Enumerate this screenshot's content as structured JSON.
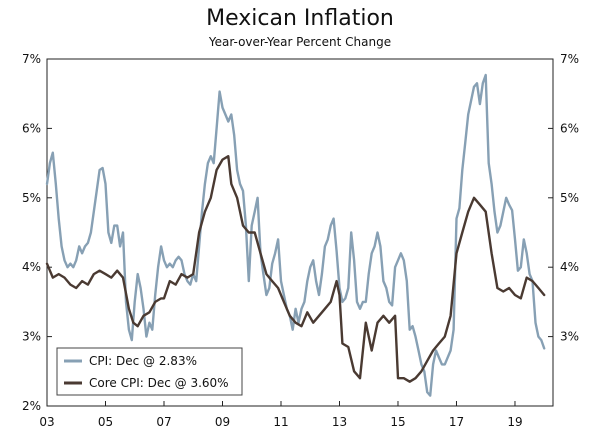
{
  "chart_data": {
    "type": "line",
    "title": "Mexican Inflation",
    "subtitle": "Year-over-Year Percent Change",
    "xlabel": "",
    "ylabel": "",
    "xlim": [
      2003,
      2020.3
    ],
    "ylim": [
      2,
      7
    ],
    "x_ticks": [
      {
        "value": 2003,
        "label": "03"
      },
      {
        "value": 2005,
        "label": "05"
      },
      {
        "value": 2007,
        "label": "07"
      },
      {
        "value": 2009,
        "label": "09"
      },
      {
        "value": 2011,
        "label": "11"
      },
      {
        "value": 2013,
        "label": "13"
      },
      {
        "value": 2015,
        "label": "15"
      },
      {
        "value": 2017,
        "label": "17"
      },
      {
        "value": 2019,
        "label": "19"
      }
    ],
    "y_ticks_left": [
      {
        "value": 2,
        "label": "2%"
      },
      {
        "value": 3,
        "label": "3%"
      },
      {
        "value": 4,
        "label": "4%"
      },
      {
        "value": 5,
        "label": "5%"
      },
      {
        "value": 6,
        "label": "6%"
      },
      {
        "value": 7,
        "label": "7%"
      }
    ],
    "y_ticks_right": [
      {
        "value": 3,
        "label": "3%"
      },
      {
        "value": 4,
        "label": "4%"
      },
      {
        "value": 5,
        "label": "5%"
      },
      {
        "value": 6,
        "label": "6%"
      },
      {
        "value": 7,
        "label": "7%"
      }
    ],
    "legend": {
      "position": "bottom-left",
      "entries": [
        {
          "label": "CPI: Dec @ 2.83%",
          "color": "#87a0b4"
        },
        {
          "label": "Core CPI: Dec @ 3.60%",
          "color": "#4a3a32"
        }
      ]
    },
    "series": [
      {
        "name": "CPI",
        "color": "#87a0b4",
        "points": [
          [
            2003.0,
            5.2
          ],
          [
            2003.1,
            5.5
          ],
          [
            2003.2,
            5.65
          ],
          [
            2003.3,
            5.2
          ],
          [
            2003.4,
            4.7
          ],
          [
            2003.5,
            4.3
          ],
          [
            2003.6,
            4.1
          ],
          [
            2003.7,
            4.0
          ],
          [
            2003.8,
            4.05
          ],
          [
            2003.9,
            4.0
          ],
          [
            2004.0,
            4.1
          ],
          [
            2004.1,
            4.3
          ],
          [
            2004.2,
            4.2
          ],
          [
            2004.3,
            4.3
          ],
          [
            2004.4,
            4.35
          ],
          [
            2004.5,
            4.5
          ],
          [
            2004.6,
            4.8
          ],
          [
            2004.7,
            5.1
          ],
          [
            2004.8,
            5.4
          ],
          [
            2004.9,
            5.43
          ],
          [
            2005.0,
            5.2
          ],
          [
            2005.1,
            4.5
          ],
          [
            2005.2,
            4.35
          ],
          [
            2005.3,
            4.6
          ],
          [
            2005.4,
            4.6
          ],
          [
            2005.5,
            4.3
          ],
          [
            2005.6,
            4.5
          ],
          [
            2005.7,
            3.5
          ],
          [
            2005.8,
            3.1
          ],
          [
            2005.9,
            2.95
          ],
          [
            2006.0,
            3.5
          ],
          [
            2006.1,
            3.9
          ],
          [
            2006.2,
            3.7
          ],
          [
            2006.3,
            3.4
          ],
          [
            2006.4,
            3.0
          ],
          [
            2006.5,
            3.2
          ],
          [
            2006.6,
            3.1
          ],
          [
            2006.7,
            3.6
          ],
          [
            2006.8,
            4.0
          ],
          [
            2006.9,
            4.3
          ],
          [
            2007.0,
            4.1
          ],
          [
            2007.1,
            4.0
          ],
          [
            2007.2,
            4.05
          ],
          [
            2007.3,
            4.0
          ],
          [
            2007.4,
            4.1
          ],
          [
            2007.5,
            4.15
          ],
          [
            2007.6,
            4.1
          ],
          [
            2007.7,
            3.9
          ],
          [
            2007.8,
            3.8
          ],
          [
            2007.9,
            3.75
          ],
          [
            2008.0,
            3.9
          ],
          [
            2008.1,
            3.8
          ],
          [
            2008.2,
            4.3
          ],
          [
            2008.3,
            4.8
          ],
          [
            2008.4,
            5.2
          ],
          [
            2008.5,
            5.5
          ],
          [
            2008.6,
            5.6
          ],
          [
            2008.7,
            5.5
          ],
          [
            2008.8,
            6.0
          ],
          [
            2008.9,
            6.53
          ],
          [
            2009.0,
            6.3
          ],
          [
            2009.1,
            6.2
          ],
          [
            2009.2,
            6.1
          ],
          [
            2009.3,
            6.2
          ],
          [
            2009.4,
            5.9
          ],
          [
            2009.5,
            5.4
          ],
          [
            2009.6,
            5.2
          ],
          [
            2009.7,
            5.1
          ],
          [
            2009.8,
            4.6
          ],
          [
            2009.9,
            3.8
          ],
          [
            2010.0,
            4.6
          ],
          [
            2010.1,
            4.8
          ],
          [
            2010.2,
            5.0
          ],
          [
            2010.3,
            4.2
          ],
          [
            2010.4,
            3.9
          ],
          [
            2010.5,
            3.6
          ],
          [
            2010.6,
            3.7
          ],
          [
            2010.7,
            4.05
          ],
          [
            2010.8,
            4.2
          ],
          [
            2010.9,
            4.4
          ],
          [
            2011.0,
            3.8
          ],
          [
            2011.1,
            3.6
          ],
          [
            2011.2,
            3.4
          ],
          [
            2011.3,
            3.3
          ],
          [
            2011.4,
            3.1
          ],
          [
            2011.5,
            3.4
          ],
          [
            2011.6,
            3.2
          ],
          [
            2011.7,
            3.4
          ],
          [
            2011.8,
            3.5
          ],
          [
            2011.9,
            3.8
          ],
          [
            2012.0,
            4.0
          ],
          [
            2012.1,
            4.1
          ],
          [
            2012.2,
            3.8
          ],
          [
            2012.3,
            3.6
          ],
          [
            2012.4,
            3.9
          ],
          [
            2012.5,
            4.3
          ],
          [
            2012.6,
            4.4
          ],
          [
            2012.7,
            4.6
          ],
          [
            2012.8,
            4.7
          ],
          [
            2012.9,
            4.23
          ],
          [
            2013.0,
            3.7
          ],
          [
            2013.1,
            3.5
          ],
          [
            2013.2,
            3.55
          ],
          [
            2013.3,
            3.7
          ],
          [
            2013.4,
            4.5
          ],
          [
            2013.5,
            4.1
          ],
          [
            2013.6,
            3.5
          ],
          [
            2013.7,
            3.4
          ],
          [
            2013.8,
            3.5
          ],
          [
            2013.9,
            3.5
          ],
          [
            2014.0,
            3.9
          ],
          [
            2014.1,
            4.2
          ],
          [
            2014.2,
            4.3
          ],
          [
            2014.3,
            4.5
          ],
          [
            2014.4,
            4.3
          ],
          [
            2014.5,
            3.8
          ],
          [
            2014.6,
            3.7
          ],
          [
            2014.7,
            3.5
          ],
          [
            2014.8,
            3.45
          ],
          [
            2014.9,
            4.0
          ],
          [
            2015.0,
            4.1
          ],
          [
            2015.1,
            4.2
          ],
          [
            2015.2,
            4.1
          ],
          [
            2015.3,
            3.8
          ],
          [
            2015.4,
            3.1
          ],
          [
            2015.5,
            3.15
          ],
          [
            2015.6,
            3.0
          ],
          [
            2015.7,
            2.8
          ],
          [
            2015.8,
            2.6
          ],
          [
            2015.9,
            2.5
          ],
          [
            2016.0,
            2.2
          ],
          [
            2016.1,
            2.15
          ],
          [
            2016.2,
            2.6
          ],
          [
            2016.3,
            2.8
          ],
          [
            2016.4,
            2.7
          ],
          [
            2016.5,
            2.6
          ],
          [
            2016.6,
            2.6
          ],
          [
            2016.7,
            2.7
          ],
          [
            2016.8,
            2.8
          ],
          [
            2016.9,
            3.1
          ],
          [
            2017.0,
            4.7
          ],
          [
            2017.1,
            4.85
          ],
          [
            2017.2,
            5.4
          ],
          [
            2017.3,
            5.8
          ],
          [
            2017.4,
            6.2
          ],
          [
            2017.5,
            6.4
          ],
          [
            2017.6,
            6.6
          ],
          [
            2017.7,
            6.65
          ],
          [
            2017.8,
            6.35
          ],
          [
            2017.9,
            6.65
          ],
          [
            2018.0,
            6.77
          ],
          [
            2018.1,
            5.5
          ],
          [
            2018.2,
            5.2
          ],
          [
            2018.3,
            4.8
          ],
          [
            2018.4,
            4.5
          ],
          [
            2018.5,
            4.6
          ],
          [
            2018.6,
            4.8
          ],
          [
            2018.7,
            5.0
          ],
          [
            2018.8,
            4.9
          ],
          [
            2018.9,
            4.82
          ],
          [
            2019.0,
            4.4
          ],
          [
            2019.1,
            3.95
          ],
          [
            2019.2,
            4.0
          ],
          [
            2019.3,
            4.4
          ],
          [
            2019.4,
            4.2
          ],
          [
            2019.5,
            3.9
          ],
          [
            2019.6,
            3.8
          ],
          [
            2019.7,
            3.2
          ],
          [
            2019.8,
            3.0
          ],
          [
            2019.9,
            2.95
          ],
          [
            2020.0,
            2.83
          ]
        ]
      },
      {
        "name": "Core CPI",
        "color": "#4a3a32",
        "points": [
          [
            2003.0,
            4.05
          ],
          [
            2003.2,
            3.85
          ],
          [
            2003.4,
            3.9
          ],
          [
            2003.6,
            3.85
          ],
          [
            2003.8,
            3.75
          ],
          [
            2004.0,
            3.7
          ],
          [
            2004.2,
            3.8
          ],
          [
            2004.4,
            3.75
          ],
          [
            2004.6,
            3.9
          ],
          [
            2004.8,
            3.95
          ],
          [
            2005.0,
            3.9
          ],
          [
            2005.2,
            3.85
          ],
          [
            2005.4,
            3.95
          ],
          [
            2005.6,
            3.85
          ],
          [
            2005.8,
            3.4
          ],
          [
            2005.95,
            3.2
          ],
          [
            2006.1,
            3.15
          ],
          [
            2006.3,
            3.3
          ],
          [
            2006.5,
            3.35
          ],
          [
            2006.7,
            3.5
          ],
          [
            2006.9,
            3.55
          ],
          [
            2007.0,
            3.55
          ],
          [
            2007.2,
            3.8
          ],
          [
            2007.4,
            3.75
          ],
          [
            2007.6,
            3.9
          ],
          [
            2007.8,
            3.85
          ],
          [
            2008.0,
            3.9
          ],
          [
            2008.2,
            4.5
          ],
          [
            2008.4,
            4.8
          ],
          [
            2008.6,
            5.0
          ],
          [
            2008.8,
            5.4
          ],
          [
            2009.0,
            5.55
          ],
          [
            2009.2,
            5.6
          ],
          [
            2009.3,
            5.2
          ],
          [
            2009.5,
            5.0
          ],
          [
            2009.7,
            4.6
          ],
          [
            2009.9,
            4.5
          ],
          [
            2010.1,
            4.5
          ],
          [
            2010.3,
            4.2
          ],
          [
            2010.5,
            3.9
          ],
          [
            2010.7,
            3.8
          ],
          [
            2010.9,
            3.7
          ],
          [
            2011.1,
            3.5
          ],
          [
            2011.3,
            3.3
          ],
          [
            2011.5,
            3.2
          ],
          [
            2011.7,
            3.15
          ],
          [
            2011.9,
            3.35
          ],
          [
            2012.1,
            3.2
          ],
          [
            2012.3,
            3.3
          ],
          [
            2012.5,
            3.4
          ],
          [
            2012.7,
            3.5
          ],
          [
            2012.9,
            3.8
          ],
          [
            2013.0,
            3.6
          ],
          [
            2013.1,
            2.9
          ],
          [
            2013.3,
            2.85
          ],
          [
            2013.5,
            2.5
          ],
          [
            2013.7,
            2.4
          ],
          [
            2013.9,
            3.2
          ],
          [
            2014.1,
            2.8
          ],
          [
            2014.3,
            3.2
          ],
          [
            2014.5,
            3.3
          ],
          [
            2014.7,
            3.2
          ],
          [
            2014.9,
            3.3
          ],
          [
            2015.0,
            2.4
          ],
          [
            2015.2,
            2.4
          ],
          [
            2015.4,
            2.35
          ],
          [
            2015.6,
            2.4
          ],
          [
            2015.8,
            2.5
          ],
          [
            2016.0,
            2.65
          ],
          [
            2016.2,
            2.8
          ],
          [
            2016.4,
            2.9
          ],
          [
            2016.6,
            3.0
          ],
          [
            2016.8,
            3.3
          ],
          [
            2017.0,
            4.2
          ],
          [
            2017.2,
            4.5
          ],
          [
            2017.4,
            4.8
          ],
          [
            2017.6,
            5.0
          ],
          [
            2017.8,
            4.9
          ],
          [
            2018.0,
            4.8
          ],
          [
            2018.2,
            4.2
          ],
          [
            2018.4,
            3.7
          ],
          [
            2018.6,
            3.65
          ],
          [
            2018.8,
            3.7
          ],
          [
            2019.0,
            3.6
          ],
          [
            2019.2,
            3.55
          ],
          [
            2019.4,
            3.85
          ],
          [
            2019.6,
            3.8
          ],
          [
            2019.8,
            3.7
          ],
          [
            2020.0,
            3.6
          ]
        ]
      }
    ]
  }
}
